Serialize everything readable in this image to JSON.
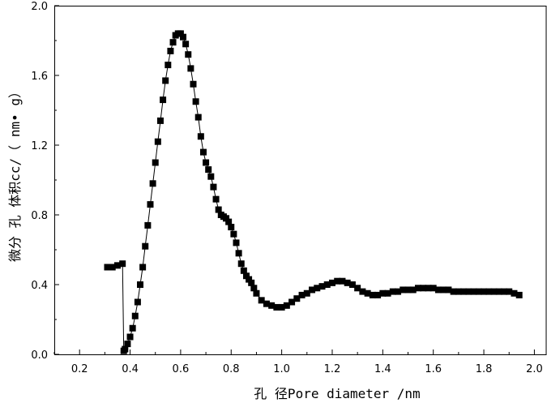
{
  "chart_data": {
    "type": "scatter",
    "xlabel": "孔 径Pore diameter /nm",
    "ylabel": "微分 孔 体积cc/（ nm• g）",
    "xlim": [
      0.1,
      2.05
    ],
    "ylim": [
      0.0,
      2.0
    ],
    "xticks": [
      "0.2",
      "0.4",
      "0.6",
      "0.8",
      "1.0",
      "1.2",
      "1.4",
      "1.6",
      "1.8",
      "2.0"
    ],
    "yticks": [
      "0.0",
      "0.4",
      "0.8",
      "1.2",
      "1.6",
      "2.0"
    ],
    "grid": false,
    "marker": "square",
    "connecting_line": true,
    "series": [
      {
        "color": "#000000",
        "x": [
          0.31,
          0.33,
          0.35,
          0.37,
          0.375,
          0.38,
          0.39,
          0.4,
          0.41,
          0.42,
          0.43,
          0.44,
          0.45,
          0.46,
          0.47,
          0.48,
          0.49,
          0.5,
          0.51,
          0.52,
          0.53,
          0.54,
          0.55,
          0.56,
          0.57,
          0.58,
          0.59,
          0.6,
          0.61,
          0.62,
          0.63,
          0.64,
          0.65,
          0.66,
          0.67,
          0.68,
          0.69,
          0.7,
          0.71,
          0.72,
          0.73,
          0.74,
          0.75,
          0.76,
          0.77,
          0.78,
          0.79,
          0.8,
          0.81,
          0.82,
          0.83,
          0.84,
          0.85,
          0.86,
          0.87,
          0.88,
          0.89,
          0.9,
          0.92,
          0.94,
          0.96,
          0.98,
          1.0,
          1.02,
          1.04,
          1.06,
          1.08,
          1.1,
          1.12,
          1.14,
          1.16,
          1.18,
          1.2,
          1.22,
          1.24,
          1.26,
          1.28,
          1.3,
          1.32,
          1.34,
          1.36,
          1.38,
          1.4,
          1.42,
          1.44,
          1.46,
          1.48,
          1.5,
          1.52,
          1.54,
          1.56,
          1.58,
          1.6,
          1.62,
          1.64,
          1.66,
          1.68,
          1.7,
          1.72,
          1.74,
          1.76,
          1.78,
          1.8,
          1.82,
          1.84,
          1.86,
          1.88,
          1.9,
          1.92,
          1.94
        ],
        "y": [
          0.5,
          0.5,
          0.51,
          0.52,
          0.02,
          0.03,
          0.06,
          0.1,
          0.15,
          0.22,
          0.3,
          0.4,
          0.5,
          0.62,
          0.74,
          0.86,
          0.98,
          1.1,
          1.22,
          1.34,
          1.46,
          1.57,
          1.66,
          1.74,
          1.79,
          1.83,
          1.84,
          1.84,
          1.82,
          1.78,
          1.72,
          1.64,
          1.55,
          1.45,
          1.36,
          1.25,
          1.16,
          1.1,
          1.06,
          1.02,
          0.96,
          0.89,
          0.83,
          0.8,
          0.79,
          0.78,
          0.76,
          0.73,
          0.69,
          0.64,
          0.58,
          0.52,
          0.48,
          0.45,
          0.43,
          0.41,
          0.38,
          0.35,
          0.31,
          0.29,
          0.28,
          0.27,
          0.27,
          0.28,
          0.3,
          0.32,
          0.34,
          0.35,
          0.37,
          0.38,
          0.39,
          0.4,
          0.41,
          0.42,
          0.42,
          0.41,
          0.4,
          0.38,
          0.36,
          0.35,
          0.34,
          0.34,
          0.35,
          0.35,
          0.36,
          0.36,
          0.37,
          0.37,
          0.37,
          0.38,
          0.38,
          0.38,
          0.38,
          0.37,
          0.37,
          0.37,
          0.36,
          0.36,
          0.36,
          0.36,
          0.36,
          0.36,
          0.36,
          0.36,
          0.36,
          0.36,
          0.36,
          0.36,
          0.35,
          0.34
        ]
      }
    ]
  }
}
